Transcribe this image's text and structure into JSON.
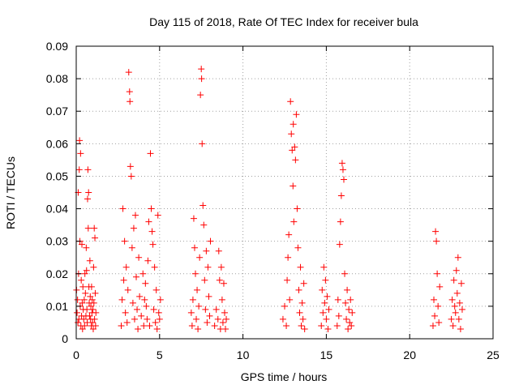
{
  "chart_data": {
    "type": "scatter",
    "title": "Day 115 of 2018, Rate Of TEC Index for receiver bula",
    "xlabel": "GPS time / hours",
    "ylabel": "ROTI / TECUs",
    "xlim": [
      0,
      25
    ],
    "ylim": [
      0,
      0.09
    ],
    "x_ticks": [
      0,
      5,
      10,
      15,
      20,
      25
    ],
    "x_tick_labels": [
      "0",
      "5",
      "10",
      "15",
      "20",
      "25"
    ],
    "y_ticks": [
      0,
      0.01,
      0.02,
      0.03,
      0.04,
      0.05,
      0.06,
      0.07,
      0.08,
      0.09
    ],
    "y_tick_labels": [
      "0",
      "0.01",
      "0.02",
      "0.03",
      "0.04",
      "0.05",
      "0.06",
      "0.07",
      "0.08",
      "0.09"
    ],
    "grid": true,
    "marker": "+",
    "marker_color": "#ff0000",
    "series": [
      {
        "name": "ROTI",
        "points": [
          [
            0.02,
            0.015
          ],
          [
            0.05,
            0.008
          ],
          [
            0.08,
            0.012
          ],
          [
            0.1,
            0.005
          ],
          [
            0.12,
            0.045
          ],
          [
            0.14,
            0.02
          ],
          [
            0.16,
            0.006
          ],
          [
            0.18,
            0.052
          ],
          [
            0.2,
            0.061
          ],
          [
            0.22,
            0.03
          ],
          [
            0.24,
            0.01
          ],
          [
            0.26,
            0.057
          ],
          [
            0.28,
            0.004
          ],
          [
            0.3,
            0.018
          ],
          [
            0.32,
            0.007
          ],
          [
            0.34,
            0.029
          ],
          [
            0.36,
            0.011
          ],
          [
            0.38,
            0.003
          ],
          [
            0.4,
            0.016
          ],
          [
            0.42,
            0.009
          ],
          [
            0.45,
            0.006
          ],
          [
            0.48,
            0.012
          ],
          [
            0.5,
            0.004
          ],
          [
            0.52,
            0.02
          ],
          [
            0.55,
            0.014
          ],
          [
            0.58,
            0.007
          ],
          [
            0.6,
            0.028
          ],
          [
            0.62,
            0.021
          ],
          [
            0.64,
            0.009
          ],
          [
            0.66,
            0.005
          ],
          [
            0.68,
            0.043
          ],
          [
            0.7,
            0.052
          ],
          [
            0.72,
            0.034
          ],
          [
            0.74,
            0.045
          ],
          [
            0.76,
            0.016
          ],
          [
            0.78,
            0.011
          ],
          [
            0.8,
            0.007
          ],
          [
            0.82,
            0.024
          ],
          [
            0.84,
            0.013
          ],
          [
            0.86,
            0.006
          ],
          [
            0.88,
            0.01
          ],
          [
            0.9,
            0.004
          ],
          [
            0.92,
            0.016
          ],
          [
            0.94,
            0.008
          ],
          [
            0.96,
            0.012
          ],
          [
            0.98,
            0.005
          ],
          [
            1.0,
            0.009
          ],
          [
            1.02,
            0.003
          ],
          [
            1.04,
            0.022
          ],
          [
            1.06,
            0.011
          ],
          [
            1.08,
            0.034
          ],
          [
            1.1,
            0.006
          ],
          [
            1.12,
            0.031
          ],
          [
            1.14,
            0.014
          ],
          [
            1.16,
            0.004
          ],
          [
            1.18,
            0.008
          ],
          [
            2.7,
            0.004
          ],
          [
            2.75,
            0.012
          ],
          [
            2.8,
            0.04
          ],
          [
            2.85,
            0.018
          ],
          [
            2.9,
            0.03
          ],
          [
            2.95,
            0.008
          ],
          [
            3.0,
            0.022
          ],
          [
            3.05,
            0.005
          ],
          [
            3.1,
            0.015
          ],
          [
            3.15,
            0.082
          ],
          [
            3.2,
            0.076
          ],
          [
            3.22,
            0.073
          ],
          [
            3.25,
            0.053
          ],
          [
            3.3,
            0.05
          ],
          [
            3.35,
            0.028
          ],
          [
            3.4,
            0.011
          ],
          [
            3.45,
            0.034
          ],
          [
            3.5,
            0.006
          ],
          [
            3.55,
            0.038
          ],
          [
            3.6,
            0.019
          ],
          [
            3.65,
            0.009
          ],
          [
            3.7,
            0.003
          ],
          [
            3.75,
            0.025
          ],
          [
            3.8,
            0.013
          ],
          [
            3.9,
            0.007
          ],
          [
            4.0,
            0.02
          ],
          [
            4.05,
            0.004
          ],
          [
            4.1,
            0.012
          ],
          [
            4.15,
            0.017
          ],
          [
            4.2,
            0.01
          ],
          [
            4.25,
            0.006
          ],
          [
            4.3,
            0.024
          ],
          [
            4.35,
            0.036
          ],
          [
            4.4,
            0.004
          ],
          [
            4.45,
            0.057
          ],
          [
            4.5,
            0.04
          ],
          [
            4.55,
            0.033
          ],
          [
            4.6,
            0.029
          ],
          [
            4.65,
            0.009
          ],
          [
            4.7,
            0.022
          ],
          [
            4.75,
            0.005
          ],
          [
            4.8,
            0.015
          ],
          [
            4.85,
            0.003
          ],
          [
            4.9,
            0.038
          ],
          [
            4.95,
            0.008
          ],
          [
            5.0,
            0.006
          ],
          [
            5.05,
            0.012
          ],
          [
            6.9,
            0.008
          ],
          [
            6.95,
            0.004
          ],
          [
            7.0,
            0.012
          ],
          [
            7.05,
            0.037
          ],
          [
            7.1,
            0.028
          ],
          [
            7.15,
            0.02
          ],
          [
            7.2,
            0.006
          ],
          [
            7.25,
            0.015
          ],
          [
            7.3,
            0.003
          ],
          [
            7.35,
            0.01
          ],
          [
            7.4,
            0.025
          ],
          [
            7.45,
            0.075
          ],
          [
            7.5,
            0.083
          ],
          [
            7.52,
            0.08
          ],
          [
            7.55,
            0.06
          ],
          [
            7.6,
            0.041
          ],
          [
            7.65,
            0.035
          ],
          [
            7.7,
            0.018
          ],
          [
            7.75,
            0.009
          ],
          [
            7.8,
            0.027
          ],
          [
            7.85,
            0.005
          ],
          [
            7.9,
            0.022
          ],
          [
            7.95,
            0.013
          ],
          [
            8.0,
            0.007
          ],
          [
            8.05,
            0.03
          ],
          [
            8.3,
            0.004
          ],
          [
            8.4,
            0.009
          ],
          [
            8.5,
            0.006
          ],
          [
            8.55,
            0.027
          ],
          [
            8.6,
            0.018
          ],
          [
            8.65,
            0.003
          ],
          [
            8.7,
            0.022
          ],
          [
            8.75,
            0.012
          ],
          [
            8.8,
            0.005
          ],
          [
            8.85,
            0.017
          ],
          [
            8.9,
            0.008
          ],
          [
            8.95,
            0.003
          ],
          [
            9.0,
            0.006
          ],
          [
            12.4,
            0.006
          ],
          [
            12.5,
            0.01
          ],
          [
            12.6,
            0.004
          ],
          [
            12.65,
            0.018
          ],
          [
            12.7,
            0.025
          ],
          [
            12.75,
            0.032
          ],
          [
            12.8,
            0.012
          ],
          [
            12.85,
            0.073
          ],
          [
            12.9,
            0.063
          ],
          [
            12.95,
            0.058
          ],
          [
            13.0,
            0.047
          ],
          [
            13.02,
            0.066
          ],
          [
            13.05,
            0.036
          ],
          [
            13.1,
            0.059
          ],
          [
            13.15,
            0.055
          ],
          [
            13.2,
            0.069
          ],
          [
            13.25,
            0.04
          ],
          [
            13.3,
            0.028
          ],
          [
            13.35,
            0.015
          ],
          [
            13.4,
            0.008
          ],
          [
            13.45,
            0.022
          ],
          [
            13.5,
            0.004
          ],
          [
            13.55,
            0.011
          ],
          [
            13.6,
            0.006
          ],
          [
            13.65,
            0.017
          ],
          [
            13.7,
            0.003
          ],
          [
            14.7,
            0.004
          ],
          [
            14.75,
            0.015
          ],
          [
            14.8,
            0.008
          ],
          [
            14.85,
            0.022
          ],
          [
            14.9,
            0.011
          ],
          [
            14.95,
            0.018
          ],
          [
            15.0,
            0.006
          ],
          [
            15.05,
            0.013
          ],
          [
            15.1,
            0.003
          ],
          [
            15.15,
            0.009
          ],
          [
            15.65,
            0.004
          ],
          [
            15.7,
            0.012
          ],
          [
            15.75,
            0.007
          ],
          [
            15.8,
            0.029
          ],
          [
            15.85,
            0.036
          ],
          [
            15.9,
            0.044
          ],
          [
            15.95,
            0.054
          ],
          [
            16.0,
            0.052
          ],
          [
            16.05,
            0.049
          ],
          [
            16.1,
            0.02
          ],
          [
            16.15,
            0.011
          ],
          [
            16.2,
            0.006
          ],
          [
            16.25,
            0.015
          ],
          [
            16.3,
            0.003
          ],
          [
            16.35,
            0.009
          ],
          [
            16.4,
            0.005
          ],
          [
            16.45,
            0.012
          ],
          [
            16.5,
            0.004
          ],
          [
            16.55,
            0.008
          ],
          [
            21.4,
            0.004
          ],
          [
            21.45,
            0.012
          ],
          [
            21.5,
            0.007
          ],
          [
            21.55,
            0.033
          ],
          [
            21.6,
            0.03
          ],
          [
            21.65,
            0.02
          ],
          [
            21.7,
            0.01
          ],
          [
            21.75,
            0.005
          ],
          [
            21.8,
            0.016
          ],
          [
            22.5,
            0.006
          ],
          [
            22.55,
            0.012
          ],
          [
            22.6,
            0.004
          ],
          [
            22.65,
            0.018
          ],
          [
            22.7,
            0.01
          ],
          [
            22.75,
            0.008
          ],
          [
            22.8,
            0.021
          ],
          [
            22.85,
            0.014
          ],
          [
            22.9,
            0.025
          ],
          [
            22.95,
            0.006
          ],
          [
            23.0,
            0.011
          ],
          [
            23.05,
            0.003
          ],
          [
            23.1,
            0.017
          ],
          [
            23.15,
            0.009
          ]
        ]
      }
    ]
  }
}
